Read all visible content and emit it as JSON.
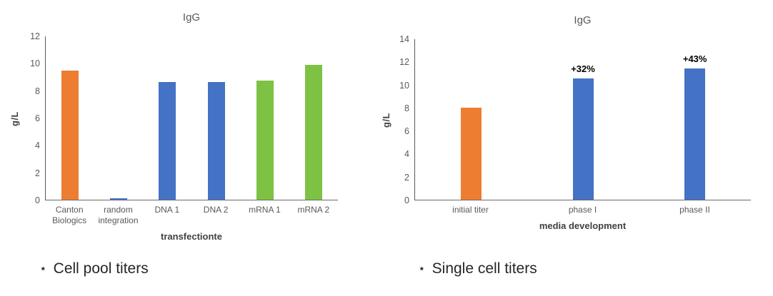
{
  "captions": [
    {
      "star": "⋆",
      "label": "Cell pool titers"
    },
    {
      "star": "⋆",
      "label": "Single cell titers"
    }
  ],
  "colors": {
    "orange": "#ED7D31",
    "blue": "#4472C4",
    "green": "#7DC242",
    "axis_line": "#595959",
    "tick_text": "#595959",
    "title_text": "#595959",
    "axis_title_text": "#404040",
    "annotation_text": "#000000",
    "caption_text": "#262626"
  },
  "chart_data": [
    {
      "type": "bar",
      "title": "IgG",
      "xlabel": "transfectionte",
      "ylabel": "g/L",
      "ylim": [
        0,
        12
      ],
      "yticks": [
        0,
        2,
        4,
        6,
        8,
        10,
        12
      ],
      "grid": false,
      "legend": null,
      "categories": [
        "Canton Biologics",
        "random integration",
        "DNA 1",
        "DNA 2",
        "mRNA 1",
        "mRNA 2"
      ],
      "values": [
        9.5,
        0.1,
        8.65,
        8.65,
        8.75,
        9.9
      ],
      "bar_colors": [
        "#ED7D31",
        "#4472C4",
        "#4472C4",
        "#4472C4",
        "#7DC242",
        "#7DC242"
      ],
      "annotations": [
        "",
        "",
        "",
        "",
        "",
        ""
      ]
    },
    {
      "type": "bar",
      "title": "IgG",
      "xlabel": "media development",
      "ylabel": "g/L",
      "ylim": [
        0,
        14
      ],
      "yticks": [
        0,
        2,
        4,
        6,
        8,
        10,
        12,
        14
      ],
      "grid": false,
      "legend": null,
      "categories": [
        "initial titer",
        "phase I",
        "phase II"
      ],
      "values": [
        8.0,
        10.56,
        11.44
      ],
      "bar_colors": [
        "#ED7D31",
        "#4472C4",
        "#4472C4"
      ],
      "annotations": [
        "",
        "+32%",
        "+43%"
      ]
    }
  ]
}
